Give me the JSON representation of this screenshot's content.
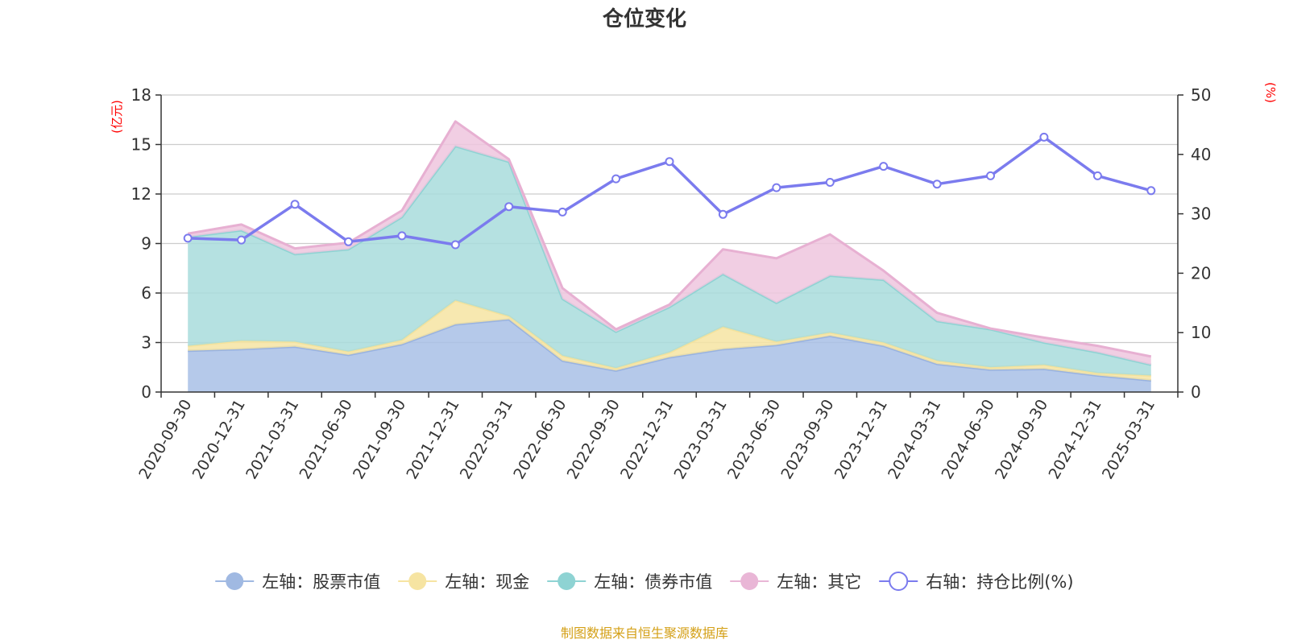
{
  "chart_data": {
    "type": "area",
    "title": "仓位变化",
    "categories": [
      "2020-09-30",
      "2020-12-31",
      "2021-03-31",
      "2021-06-30",
      "2021-09-30",
      "2021-12-31",
      "2022-03-31",
      "2022-06-30",
      "2022-09-30",
      "2022-12-31",
      "2023-03-31",
      "2023-06-30",
      "2023-09-30",
      "2023-12-31",
      "2024-03-31",
      "2024-06-30",
      "2024-09-30",
      "2024-12-31",
      "2025-03-31"
    ],
    "left_axis": {
      "unit": "(亿元)",
      "ylim": [
        0,
        18
      ],
      "ticks": [
        "0",
        "3",
        "6",
        "9",
        "12",
        "15",
        "18"
      ]
    },
    "right_axis": {
      "unit": "(%)",
      "ylim": [
        0,
        50
      ],
      "ticks": [
        "0",
        "10",
        "20",
        "30",
        "40",
        "50"
      ]
    },
    "stacked_series": [
      {
        "name": "左轴：股票市值",
        "axis": "left",
        "color": "#a8c0e6",
        "line_color": "#98b2e0",
        "values": [
          2.5,
          2.6,
          2.75,
          2.25,
          2.9,
          4.1,
          4.4,
          1.9,
          1.3,
          2.1,
          2.6,
          2.85,
          3.4,
          2.8,
          1.7,
          1.35,
          1.4,
          1.0,
          0.7
        ]
      },
      {
        "name": "左轴：现金",
        "axis": "left",
        "color": "#f6e4a2",
        "line_color": "#f4e29c",
        "values": [
          0.3,
          0.5,
          0.3,
          0.2,
          0.25,
          1.45,
          0.2,
          0.3,
          0.15,
          0.3,
          1.35,
          0.2,
          0.2,
          0.2,
          0.2,
          0.15,
          0.25,
          0.15,
          0.3
        ]
      },
      {
        "name": "左轴：债券市值",
        "axis": "left",
        "color": "#a8dcdc",
        "line_color": "#8ed3d3",
        "values": [
          6.6,
          6.7,
          5.3,
          6.2,
          7.45,
          9.35,
          9.35,
          3.45,
          2.2,
          2.75,
          3.2,
          2.35,
          3.45,
          3.8,
          2.4,
          2.3,
          1.35,
          1.25,
          0.65
        ]
      },
      {
        "name": "左轴：其它",
        "axis": "left",
        "color": "#eec5de",
        "line_color": "#e7b0d2",
        "values": [
          0.2,
          0.35,
          0.35,
          0.4,
          0.4,
          1.5,
          0.15,
          0.65,
          0.15,
          0.15,
          1.5,
          2.7,
          2.5,
          0.55,
          0.5,
          0.05,
          0.3,
          0.4,
          0.5
        ]
      }
    ],
    "line_series": [
      {
        "name": "右轴：持仓比例(%)",
        "axis": "right",
        "color": "#7b7bee",
        "values": [
          25.9,
          25.6,
          31.6,
          25.3,
          26.3,
          24.8,
          31.2,
          30.3,
          35.9,
          38.8,
          29.9,
          34.4,
          35.3,
          38.0,
          35.0,
          36.4,
          42.9,
          36.4,
          33.9
        ]
      }
    ],
    "grid": true,
    "legend_position": "bottom"
  },
  "legend": [
    {
      "label": "左轴：股票市值",
      "color": "#a0b9e2",
      "type": "filled"
    },
    {
      "label": "左轴：现金",
      "color": "#f6e4a2",
      "type": "filled"
    },
    {
      "label": "左轴：债券市值",
      "color": "#8ed3d3",
      "type": "filled"
    },
    {
      "label": "左轴：其它",
      "color": "#e9b6d6",
      "type": "filled"
    },
    {
      "label": "右轴：持仓比例(%)",
      "color": "#7b7bee",
      "type": "hollow"
    }
  ],
  "source_text": "制图数据来自恒生聚源数据库"
}
